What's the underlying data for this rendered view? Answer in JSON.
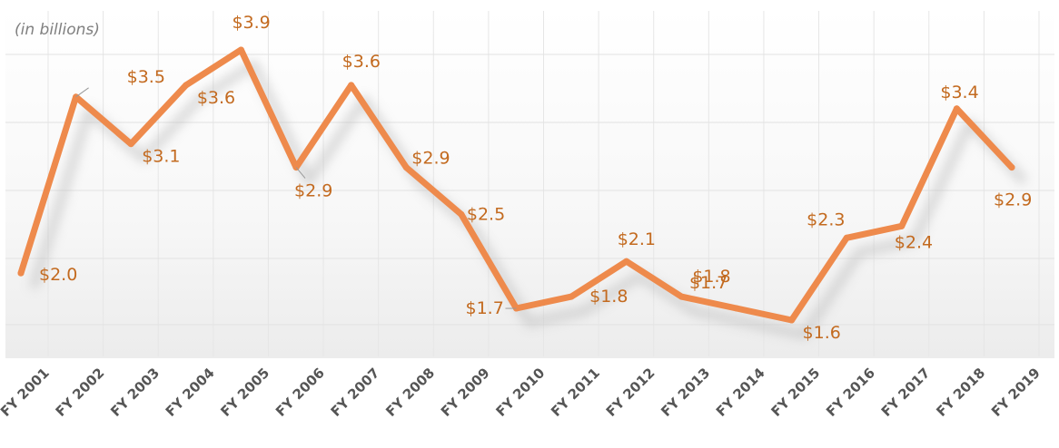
{
  "chart_data": {
    "type": "line",
    "unit_note": "(in billions)",
    "title": "",
    "xlabel": "",
    "ylabel": "",
    "categories": [
      "FY 2001",
      "FY 2002",
      "FY 2003",
      "FY 2004",
      "FY 2005",
      "FY 2006",
      "FY 2007",
      "FY 2008",
      "FY 2009",
      "FY 2010",
      "FY 2011",
      "FY 2012",
      "FY 2013",
      "FY 2014",
      "FY 2015",
      "FY 2016",
      "FY 2017",
      "FY 2018",
      "FY 2019"
    ],
    "values": [
      2.0,
      3.5,
      3.1,
      3.6,
      3.9,
      2.9,
      3.6,
      2.9,
      2.5,
      1.7,
      1.8,
      2.1,
      1.8,
      1.7,
      1.6,
      2.3,
      2.4,
      3.4,
      2.9
    ],
    "data_labels": [
      "$2.0",
      "$3.5",
      "$3.1",
      "$3.6",
      "$3.9",
      "$2.9",
      "$3.6",
      "$2.9",
      "$2.5",
      "$1.7",
      "$1.8",
      "$2.1",
      "$1.8",
      "$1.7",
      "$1.6",
      "$2.3",
      "$2.4",
      "$3.4",
      "$2.9"
    ],
    "grid": true,
    "legend": "none",
    "line_color": "#ee8a4c",
    "label_color": "#c36a1f"
  }
}
